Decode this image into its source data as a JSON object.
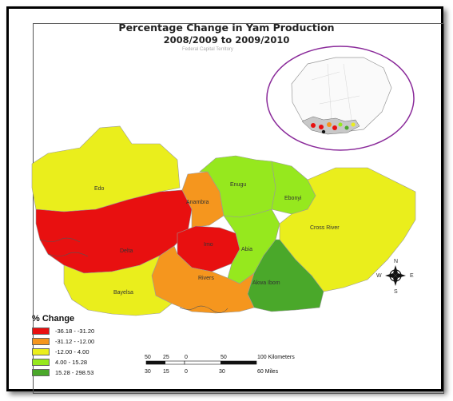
{
  "map": {
    "title_line1": "Percentage Change in Yam Production",
    "title_line2": "2008/2009 to 2009/2010",
    "context_label": "Federal Capital Territory",
    "states": [
      {
        "name": "Edo",
        "class": 3
      },
      {
        "name": "Delta",
        "class": 1
      },
      {
        "name": "Anambra",
        "class": 2
      },
      {
        "name": "Enugu",
        "class": 4
      },
      {
        "name": "Ebonyi",
        "class": 4
      },
      {
        "name": "Imo",
        "class": 1
      },
      {
        "name": "Abia",
        "class": 4
      },
      {
        "name": "Cross River",
        "class": 3
      },
      {
        "name": "Bayelsa",
        "class": 3
      },
      {
        "name": "Rivers",
        "class": 2
      },
      {
        "name": "Akwa Ibom",
        "class": 5
      }
    ],
    "legend": {
      "title": "% Change",
      "classes": [
        {
          "range": "-36.18 - -31.20",
          "color": "#e81010"
        },
        {
          "range": "-31.12 - -12.00",
          "color": "#f5961e"
        },
        {
          "range": "-12.00 - 4.00",
          "color": "#eaee1c"
        },
        {
          "range": "4.00 - 15.28",
          "color": "#96e81e"
        },
        {
          "range": "15.28 - 298.53",
          "color": "#4aa82a"
        }
      ]
    },
    "scale_km": {
      "ticks": [
        "50",
        "25",
        "0",
        "50",
        "100 Kilometers"
      ]
    },
    "scale_mi": {
      "ticks": [
        "30",
        "15",
        "0",
        "30",
        "60 Miles"
      ]
    },
    "compass": {
      "n": "N",
      "s": "S",
      "e": "E",
      "w": "W"
    }
  }
}
